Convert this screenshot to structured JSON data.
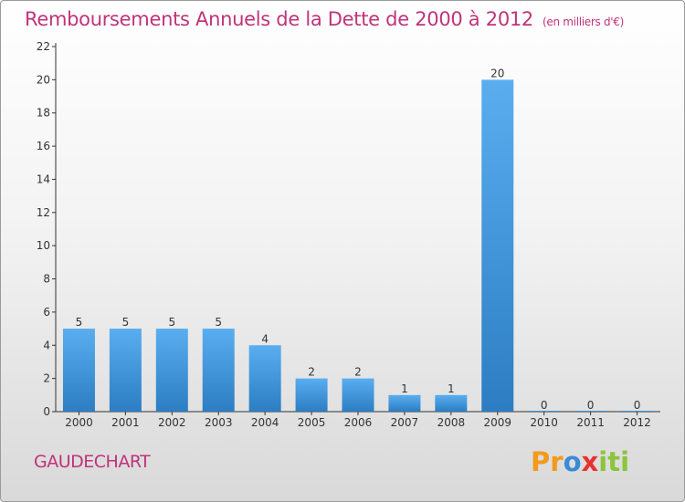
{
  "title": "Remboursements Annuels de la Dette de 2000 à 2012",
  "unit_label": "(en milliers d'€)",
  "commune": "GAUDECHART",
  "logo": {
    "text": "Proxiti",
    "letters": [
      {
        "ch": "P",
        "color": "#f29a1c"
      },
      {
        "ch": "r",
        "color": "#f29a1c"
      },
      {
        "ch": "o",
        "color": "#3b8ad6"
      },
      {
        "ch": "x",
        "color": "#e8332f"
      },
      {
        "ch": "i",
        "color": "#8cc43c"
      },
      {
        "ch": "t",
        "color": "#8cc43c"
      },
      {
        "ch": "i",
        "color": "#8cc43c"
      }
    ]
  },
  "colors": {
    "title": "#c0337a",
    "bar_top": "#5aaef0",
    "bar_bottom": "#2c7dc2",
    "axis": "#333333",
    "text": "#333333"
  },
  "chart_data": {
    "type": "bar",
    "title": "Remboursements Annuels de la Dette de 2000 à 2012",
    "categories": [
      "2000",
      "2001",
      "2002",
      "2003",
      "2004",
      "2005",
      "2006",
      "2007",
      "2008",
      "2009",
      "2010",
      "2011",
      "2012"
    ],
    "values": [
      5,
      5,
      5,
      5,
      4,
      2,
      2,
      1,
      1,
      20,
      0,
      0,
      0
    ],
    "ylim": [
      0,
      22
    ],
    "yticks": [
      0,
      2,
      4,
      6,
      8,
      10,
      12,
      14,
      16,
      18,
      20,
      22
    ],
    "xlabel": "",
    "ylabel": "",
    "grid": false,
    "legend": "none",
    "data_labels": true
  }
}
